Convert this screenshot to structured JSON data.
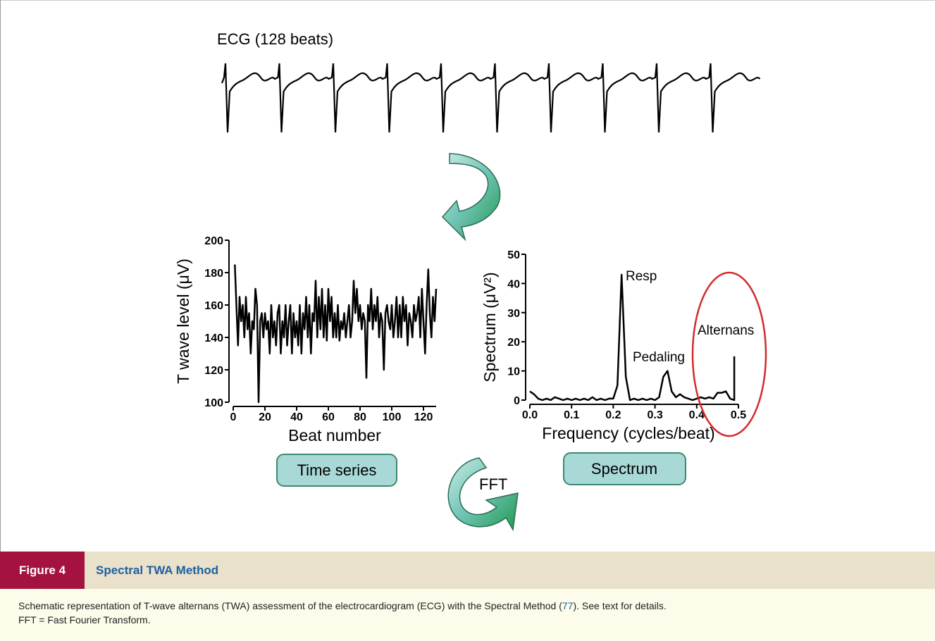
{
  "ecg_label": "ECG (128 beats)",
  "chart_data": [
    {
      "type": "line",
      "y_label": "T wave level (μV)",
      "x_label": "Beat number",
      "x": [
        1,
        2,
        3,
        4,
        5,
        6,
        7,
        8,
        9,
        10,
        11,
        12,
        13,
        14,
        15,
        16,
        17,
        18,
        19,
        20,
        21,
        22,
        23,
        24,
        25,
        26,
        27,
        28,
        29,
        30,
        31,
        32,
        33,
        34,
        35,
        36,
        37,
        38,
        39,
        40,
        41,
        42,
        43,
        44,
        45,
        46,
        47,
        48,
        49,
        50,
        51,
        52,
        53,
        54,
        55,
        56,
        57,
        58,
        59,
        60,
        61,
        62,
        63,
        64,
        65,
        66,
        67,
        68,
        69,
        70,
        71,
        72,
        73,
        74,
        75,
        76,
        77,
        78,
        79,
        80,
        81,
        82,
        83,
        84,
        85,
        86,
        87,
        88,
        89,
        90,
        91,
        92,
        93,
        94,
        95,
        96,
        97,
        98,
        99,
        100,
        101,
        102,
        103,
        104,
        105,
        106,
        107,
        108,
        109,
        110,
        111,
        112,
        113,
        114,
        115,
        116,
        117,
        118,
        119,
        120,
        121,
        122,
        123,
        124,
        125,
        126,
        127,
        128
      ],
      "values": [
        185,
        160,
        135,
        165,
        150,
        160,
        140,
        165,
        145,
        155,
        130,
        150,
        145,
        170,
        160,
        100,
        150,
        155,
        140,
        155,
        145,
        150,
        130,
        160,
        140,
        150,
        135,
        155,
        160,
        130,
        150,
        140,
        160,
        135,
        150,
        160,
        130,
        155,
        140,
        150,
        135,
        160,
        130,
        155,
        145,
        165,
        140,
        160,
        130,
        155,
        150,
        175,
        140,
        165,
        145,
        170,
        140,
        160,
        138,
        170,
        150,
        165,
        140,
        155,
        140,
        160,
        138,
        150,
        145,
        155,
        140,
        150,
        160,
        140,
        150,
        175,
        155,
        170,
        150,
        160,
        145,
        155,
        150,
        115,
        160,
        150,
        170,
        145,
        160,
        150,
        165,
        140,
        155,
        150,
        120,
        155,
        160,
        150,
        145,
        160,
        140,
        150,
        165,
        140,
        160,
        140,
        165,
        150,
        160,
        135,
        155,
        150,
        140,
        160,
        150,
        155,
        165,
        140,
        170,
        150,
        130,
        160,
        182,
        155,
        140,
        165,
        150,
        170
      ],
      "color": "#000000",
      "xlim": [
        0,
        128
      ],
      "ylim": [
        100,
        200
      ],
      "xticks": [
        0,
        20,
        40,
        60,
        80,
        100,
        120
      ],
      "yticks": [
        100,
        120,
        140,
        160,
        180,
        200
      ],
      "box_label": "Time series"
    },
    {
      "type": "line",
      "y_label": "Spectrum (μV²)",
      "x_label": "Frequency (cycles/beat)",
      "x": [
        0,
        0.01,
        0.02,
        0.03,
        0.04,
        0.05,
        0.06,
        0.07,
        0.08,
        0.09,
        0.1,
        0.11,
        0.12,
        0.13,
        0.14,
        0.15,
        0.16,
        0.17,
        0.18,
        0.19,
        0.2,
        0.21,
        0.22,
        0.23,
        0.24,
        0.25,
        0.26,
        0.27,
        0.28,
        0.29,
        0.3,
        0.31,
        0.32,
        0.33,
        0.34,
        0.35,
        0.36,
        0.37,
        0.38,
        0.39,
        0.4,
        0.41,
        0.42,
        0.43,
        0.44,
        0.45,
        0.46,
        0.47,
        0.48,
        0.49,
        0.49
      ],
      "values": [
        3,
        2,
        0.5,
        0,
        0.5,
        0,
        1,
        0.5,
        0,
        0.5,
        0,
        0.5,
        0,
        0.5,
        0,
        1,
        0,
        0.5,
        0,
        0.5,
        0.5,
        5,
        43,
        8,
        0,
        0.5,
        0,
        0.5,
        0,
        0.5,
        0,
        1,
        8,
        10,
        3,
        1,
        2,
        1,
        0.5,
        0,
        0.5,
        1,
        0.5,
        1,
        0.5,
        2.5,
        2.5,
        3,
        0.5,
        0,
        15
      ],
      "color": "#000000",
      "xlim": [
        0,
        0.5
      ],
      "ylim": [
        0,
        50
      ],
      "xticks": [
        {
          "value": 0,
          "label": "0.0"
        },
        0.1,
        0.2,
        0.3,
        0.4,
        0.5
      ],
      "yticks": [
        0,
        10,
        20,
        30,
        40,
        50
      ],
      "annotations": [
        "Resp",
        "Pedaling",
        "Alternans"
      ],
      "box_label": "Spectrum"
    }
  ],
  "arrow_label": "FFT",
  "caption": {
    "figure_number": "Figure 4",
    "title": "Spectral TWA Method",
    "text_before": "Schematic representation of T-wave alternans (TWA) assessment of the electrocardiogram (ECG) with the Spectral Method (",
    "ref": "77",
    "text_after": "). See text for details.",
    "note": "FFT = Fast Fourier Transform."
  }
}
